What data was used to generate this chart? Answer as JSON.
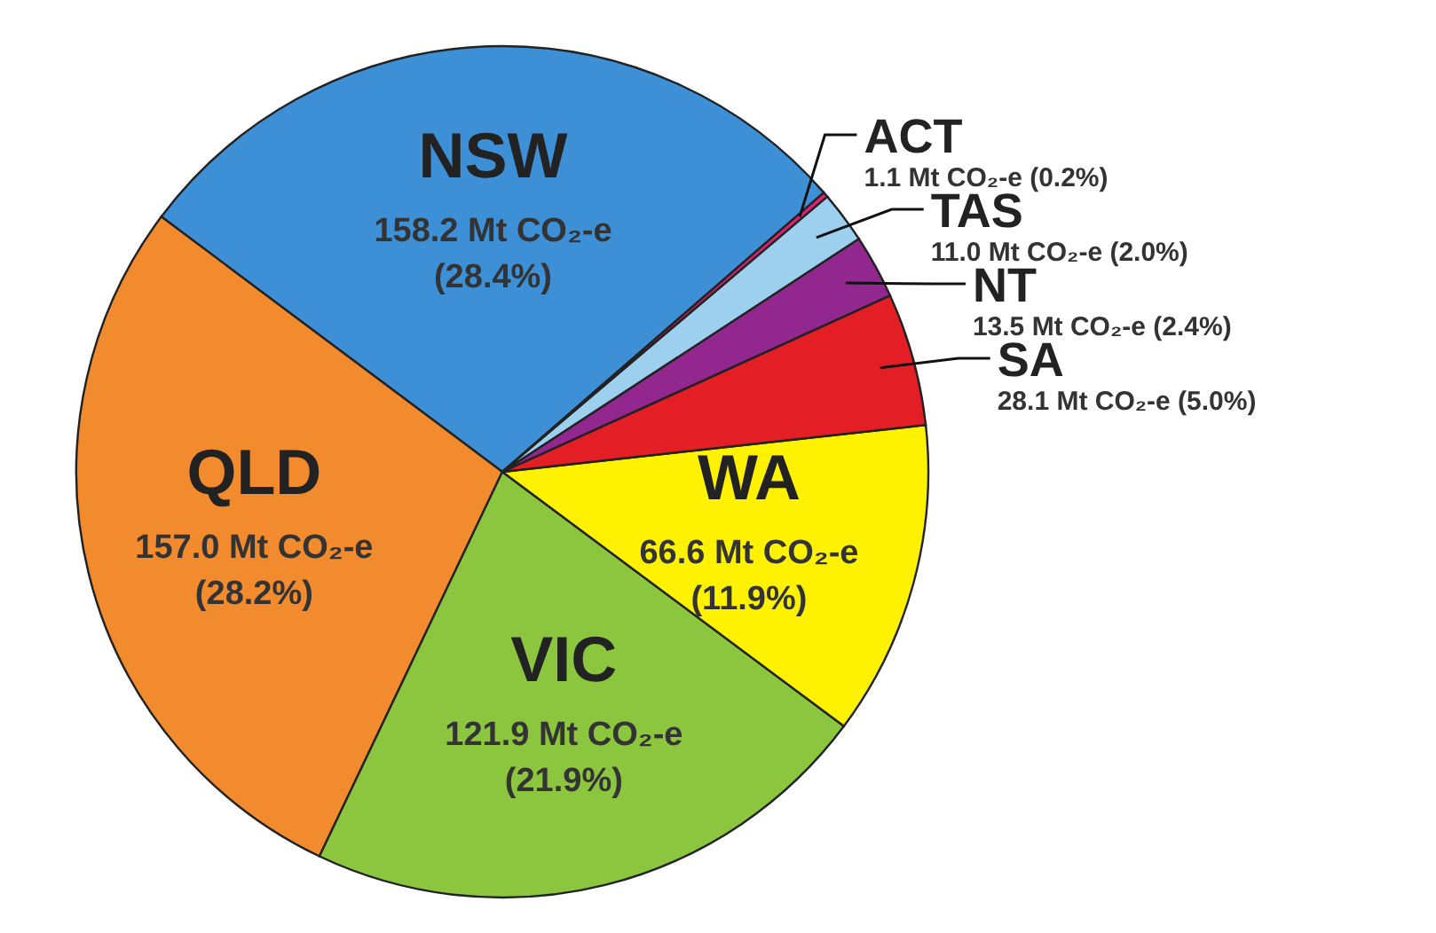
{
  "chart_data": {
    "type": "pie",
    "categories": [
      "NSW",
      "QLD",
      "VIC",
      "WA",
      "SA",
      "NT",
      "TAS",
      "ACT"
    ],
    "values": [
      158.2,
      157.0,
      121.9,
      66.6,
      28.1,
      13.5,
      11.0,
      1.1
    ],
    "colors": [
      "#3d8fd6",
      "#f28a2e",
      "#8cc63f",
      "#fff200",
      "#e31e24",
      "#92278f",
      "#9dd0ef",
      "#e0207a"
    ],
    "value_labels": [
      "158.2 Mt CO₂-e (28.4%)",
      "157.0 Mt CO₂-e (28.2%)",
      "121.9 Mt CO₂-e (21.9%)",
      "66.6 Mt CO₂-e (11.9%)",
      "28.1 Mt CO₂-e (5.0%)",
      "13.5 Mt CO₂-e (2.4%)",
      "11.0 Mt CO₂-e (2.0%)",
      "1.1 Mt CO₂-e (0.2%)"
    ]
  }
}
